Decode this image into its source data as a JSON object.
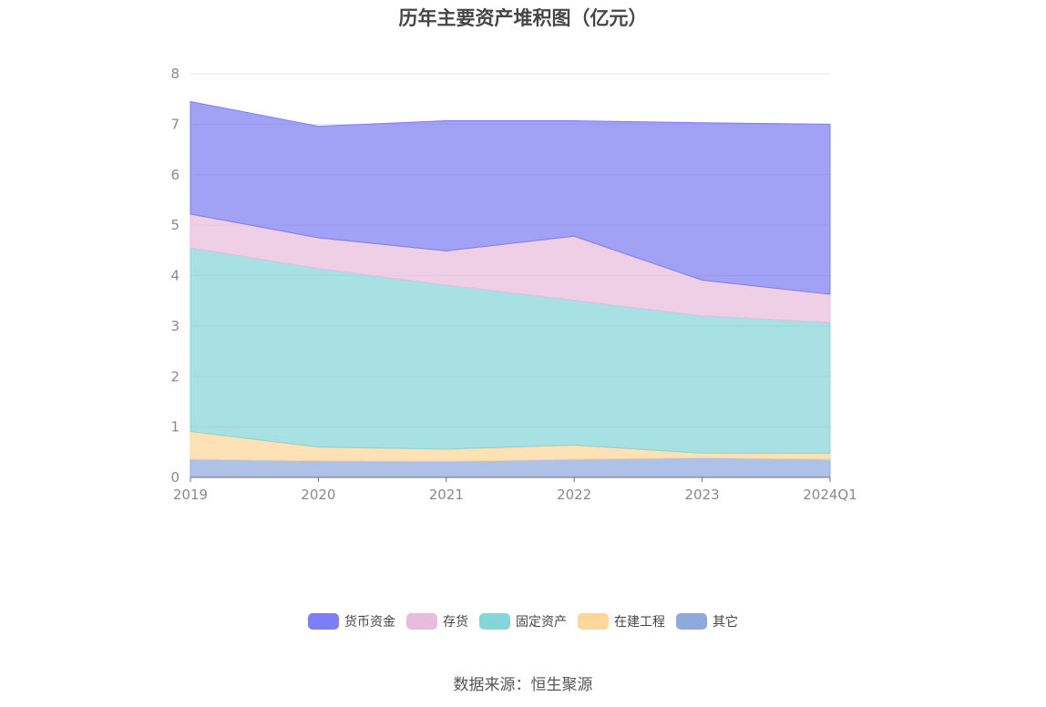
{
  "chart_data": {
    "type": "area",
    "stacked": true,
    "title": "历年主要资产堆积图（亿元）",
    "categories": [
      "2019",
      "2020",
      "2021",
      "2022",
      "2023",
      "2024Q1"
    ],
    "ylim": [
      0,
      8
    ],
    "yticks": [
      "0",
      "1",
      "2",
      "3",
      "4",
      "5",
      "6",
      "7",
      "8"
    ],
    "grid": true,
    "legend_position": "bottom",
    "series": [
      {
        "name": "其它",
        "color": "#8eaadd",
        "values": [
          0.36,
          0.33,
          0.32,
          0.36,
          0.39,
          0.36
        ]
      },
      {
        "name": "在建工程",
        "color": "#fdd79a",
        "values": [
          0.55,
          0.27,
          0.24,
          0.28,
          0.09,
          0.12
        ]
      },
      {
        "name": "固定资产",
        "color": "#85d6d8",
        "values": [
          3.64,
          3.54,
          3.25,
          2.87,
          2.72,
          2.59
        ]
      },
      {
        "name": "存货",
        "color": "#e8bcdc",
        "values": [
          0.67,
          0.61,
          0.68,
          1.27,
          0.71,
          0.56
        ]
      },
      {
        "name": "货币资金",
        "color": "#7d7ef3",
        "values": [
          2.23,
          2.21,
          2.58,
          2.29,
          3.12,
          3.37
        ]
      }
    ]
  },
  "legend_order": [
    "货币资金",
    "存货",
    "固定资产",
    "在建工程",
    "其它"
  ],
  "source": "数据来源：恒生聚源"
}
